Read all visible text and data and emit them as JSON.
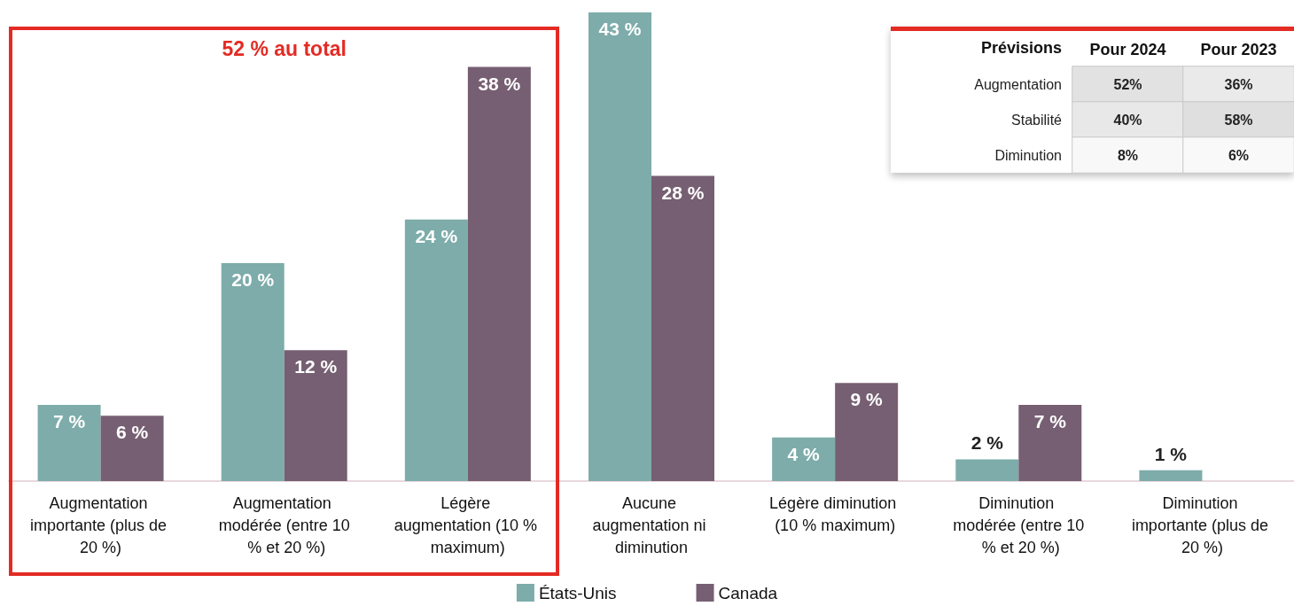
{
  "chart_data": [
    {
      "type": "bar",
      "categories": [
        "Augmentation importante (plus de 20 %)",
        "Augmentation modérée (entre 10 % et 20 %)",
        "Légère augmentation (10 % maximum)",
        "Aucune augmentation ni diminution",
        "Légère diminution (10 % maximum)",
        "Diminution modérée (entre 10 % et 20 %)",
        "Diminution importante (plus de 20 %)"
      ],
      "series": [
        {
          "name": "États-Unis",
          "color": "#7dacaa",
          "values": [
            7,
            20,
            24,
            43,
            4,
            2,
            1
          ],
          "value_labels": [
            "7 %",
            "20 %",
            "24 %",
            "43 %",
            "4 %",
            "2 %",
            "1 %"
          ]
        },
        {
          "name": "Canada",
          "color": "#765f72",
          "values": [
            6,
            12,
            38,
            28,
            9,
            7,
            null
          ],
          "value_labels": [
            "6 %",
            "12 %",
            "38 %",
            "28 %",
            "9 %",
            "7 %",
            null
          ]
        }
      ],
      "annotations": [
        "52 % au total"
      ],
      "legend": "bottom"
    },
    {
      "type": "heatmap",
      "ylabel": "Prévisions",
      "categories": [
        "Pour 2024",
        "Pour 2023"
      ],
      "y_categories": [
        "Augmentation",
        "Stabilité",
        "Diminution"
      ],
      "cells": [
        [
          52,
          36
        ],
        [
          40,
          58
        ],
        [
          8,
          6
        ]
      ],
      "cell_labels": [
        [
          "52%",
          "36%"
        ],
        [
          "40%",
          "58%"
        ],
        [
          "8%",
          "6%"
        ]
      ]
    }
  ]
}
